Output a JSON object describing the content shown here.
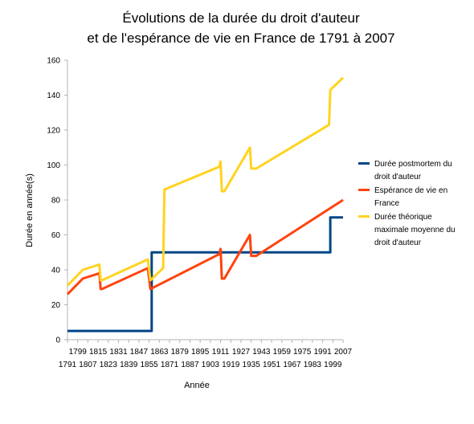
{
  "chart_data": {
    "type": "line",
    "title_lines": [
      "Évolutions de la durée du droit d'auteur",
      "et de l'espérance de vie en France de 1791 à 2007"
    ],
    "xlabel": "Année",
    "ylabel": "Durée en année(s)",
    "xlim": [
      1791,
      2007
    ],
    "ylim": [
      0,
      160
    ],
    "y_ticks": [
      0,
      20,
      40,
      60,
      80,
      100,
      120,
      140,
      160
    ],
    "x_ticks_row1": [
      1799,
      1815,
      1831,
      1847,
      1863,
      1879,
      1895,
      1911,
      1927,
      1943,
      1959,
      1975,
      1991,
      2007
    ],
    "x_ticks_row2": [
      1791,
      1807,
      1823,
      1839,
      1855,
      1871,
      1887,
      1903,
      1919,
      1935,
      1951,
      1967,
      1983,
      1999
    ],
    "grid": false,
    "legend_position": "right",
    "series": [
      {
        "name": "Durée postmortem du droit d'auteur",
        "color": "#004586",
        "points": [
          [
            1791,
            5
          ],
          [
            1857,
            5
          ],
          [
            1857,
            50
          ],
          [
            1997,
            50
          ],
          [
            1997,
            70
          ],
          [
            2007,
            70
          ]
        ]
      },
      {
        "name": "Espérance de vie en France",
        "color": "#ff420e",
        "points": [
          [
            1791,
            26
          ],
          [
            1803,
            35
          ],
          [
            1816,
            38
          ],
          [
            1817,
            29
          ],
          [
            1818,
            29
          ],
          [
            1854,
            41
          ],
          [
            1856,
            29
          ],
          [
            1910,
            49
          ],
          [
            1911,
            52
          ],
          [
            1912,
            35
          ],
          [
            1914,
            35
          ],
          [
            1934,
            60
          ],
          [
            1935,
            48
          ],
          [
            1939,
            48
          ],
          [
            2007,
            80
          ]
        ]
      },
      {
        "name": "Durée théorique maximale moyenne du droit d'auteur",
        "color": "#ffd320",
        "points": [
          [
            1791,
            31
          ],
          [
            1803,
            40
          ],
          [
            1816,
            43
          ],
          [
            1817,
            34
          ],
          [
            1818,
            34
          ],
          [
            1854,
            46
          ],
          [
            1856,
            34
          ],
          [
            1866,
            41
          ],
          [
            1867,
            86
          ],
          [
            1910,
            99
          ],
          [
            1911,
            102
          ],
          [
            1912,
            85
          ],
          [
            1914,
            85
          ],
          [
            1934,
            110
          ],
          [
            1935,
            98
          ],
          [
            1939,
            98
          ],
          [
            1996,
            123
          ],
          [
            1997,
            143
          ],
          [
            2007,
            150
          ]
        ]
      }
    ]
  }
}
